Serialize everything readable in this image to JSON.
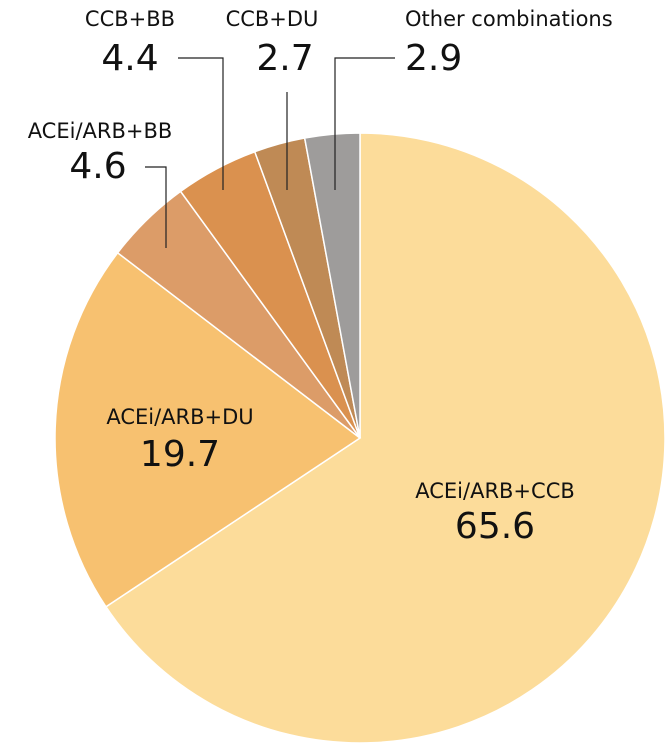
{
  "chart_data": {
    "type": "pie",
    "categories": [
      "ACEi/ARB+CCB",
      "ACEi/ARB+DU",
      "ACEi/ARB+BB",
      "CCB+BB",
      "CCB+DU",
      "Other combinations"
    ],
    "values": [
      65.6,
      19.7,
      4.6,
      4.4,
      2.7,
      2.9
    ],
    "colors": [
      "#fcdc9a",
      "#f7c170",
      "#dc9c68",
      "#da914f",
      "#bf8a55",
      "#9e9c9b"
    ]
  }
}
